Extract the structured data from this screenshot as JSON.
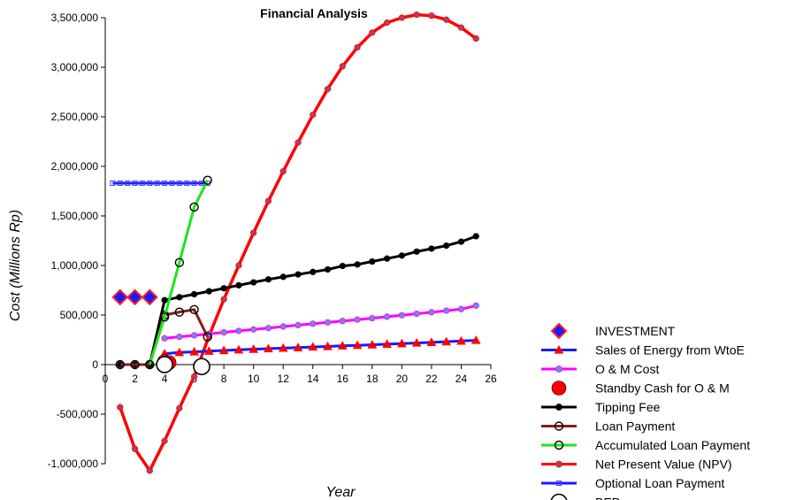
{
  "chart_data": {
    "type": "line",
    "title": "Financial Analysis",
    "xlabel": "Year",
    "ylabel": "Cost (Millions Rp)",
    "xlim": [
      0,
      26
    ],
    "ylim": [
      -1000000,
      3500000
    ],
    "x_ticks": [
      0,
      2,
      4,
      6,
      8,
      10,
      12,
      14,
      16,
      18,
      20,
      22,
      24,
      26
    ],
    "y_ticks": [
      -1000000,
      -500000,
      0,
      500000,
      1000000,
      1500000,
      2000000,
      2500000,
      3000000,
      3500000
    ],
    "x_tick_labels": [
      "0",
      "2",
      "4",
      "6",
      "8",
      "10",
      "12",
      "14",
      "16",
      "18",
      "20",
      "22",
      "24",
      "26"
    ],
    "y_tick_labels": [
      "-1,000,000",
      "-500,000",
      "0",
      "500,000",
      "1,000,000",
      "1,500,000",
      "2,000,000",
      "2,500,000",
      "3,000,000",
      "3,500,000"
    ],
    "grid": false,
    "legend_position": "bottom-right",
    "series": [
      {
        "name": "INVESTMENT",
        "color": "#1a1aff",
        "edge": "#ff2020",
        "marker": "diamond",
        "line": false,
        "points": [
          [
            1,
            680000
          ],
          [
            2,
            680000
          ],
          [
            3,
            680000
          ]
        ]
      },
      {
        "name": "Sales of Energy from WtoE",
        "color": "#1a1aff",
        "marker": "triangle",
        "marker_color": "#ff0000",
        "line": true,
        "points": [
          [
            4,
            110000
          ],
          [
            5,
            122000
          ],
          [
            6,
            129000
          ],
          [
            7,
            136000
          ],
          [
            8,
            143000
          ],
          [
            9,
            149000
          ],
          [
            10,
            155000
          ],
          [
            11,
            161000
          ],
          [
            12,
            166000
          ],
          [
            13,
            172000
          ],
          [
            14,
            178000
          ],
          [
            15,
            183000
          ],
          [
            16,
            189000
          ],
          [
            17,
            195000
          ],
          [
            18,
            200000
          ],
          [
            19,
            206000
          ],
          [
            20,
            212000
          ],
          [
            21,
            218000
          ],
          [
            22,
            224000
          ],
          [
            23,
            231000
          ],
          [
            24,
            238000
          ],
          [
            25,
            245000
          ]
        ]
      },
      {
        "name": "O & M Cost",
        "color": "#ff00ff",
        "marker": "circle",
        "marker_color": "#6f8cd8",
        "line": true,
        "points": [
          [
            4,
            265000
          ],
          [
            5,
            280000
          ],
          [
            6,
            295000
          ],
          [
            7,
            310000
          ],
          [
            8,
            325000
          ],
          [
            9,
            340000
          ],
          [
            10,
            355000
          ],
          [
            11,
            369000
          ],
          [
            12,
            384000
          ],
          [
            13,
            398000
          ],
          [
            14,
            412000
          ],
          [
            15,
            426000
          ],
          [
            16,
            440000
          ],
          [
            17,
            454000
          ],
          [
            18,
            468000
          ],
          [
            19,
            483000
          ],
          [
            20,
            498000
          ],
          [
            21,
            513000
          ],
          [
            22,
            528000
          ],
          [
            23,
            544000
          ],
          [
            24,
            560000
          ],
          [
            25,
            595000
          ]
        ]
      },
      {
        "name": "Standby Cash for O & M",
        "color": "#ff0000",
        "marker": "big-circle",
        "line": false,
        "points": [
          [
            4,
            30000
          ],
          [
            4.3,
            20000
          ]
        ]
      },
      {
        "name": "Tipping Fee",
        "color": "#000000",
        "marker": "circle",
        "marker_color": "#000000",
        "line": true,
        "points": [
          [
            1,
            0
          ],
          [
            2,
            0
          ],
          [
            3,
            0
          ],
          [
            4,
            650000
          ],
          [
            5,
            680000
          ],
          [
            6,
            710000
          ],
          [
            7,
            740000
          ],
          [
            8,
            770000
          ],
          [
            9,
            800000
          ],
          [
            10,
            830000
          ],
          [
            11,
            860000
          ],
          [
            12,
            885000
          ],
          [
            13,
            910000
          ],
          [
            14,
            935000
          ],
          [
            15,
            960000
          ],
          [
            16,
            995000
          ],
          [
            17,
            1010000
          ],
          [
            18,
            1040000
          ],
          [
            19,
            1070000
          ],
          [
            20,
            1100000
          ],
          [
            21,
            1140000
          ],
          [
            22,
            1170000
          ],
          [
            23,
            1200000
          ],
          [
            24,
            1240000
          ],
          [
            25,
            1295000
          ]
        ]
      },
      {
        "name": "Loan Payment",
        "color": "#8b1a1a",
        "marker": "open-circle",
        "line": true,
        "points": [
          [
            1,
            0
          ],
          [
            2,
            0
          ],
          [
            3,
            0
          ],
          [
            4,
            500000
          ],
          [
            5,
            530000
          ],
          [
            6,
            555000
          ],
          [
            6.9,
            280000
          ]
        ]
      },
      {
        "name": "Accumulated Loan Payment",
        "color": "#1ee51e",
        "marker": "open-circle",
        "line": true,
        "points": [
          [
            3,
            0
          ],
          [
            4,
            480000
          ],
          [
            5,
            1030000
          ],
          [
            6,
            1590000
          ],
          [
            6.9,
            1860000
          ]
        ]
      },
      {
        "name": "Net Present Value (NPV)",
        "color": "#ff0000",
        "marker": "circle",
        "marker_color": "#b04060",
        "line": true,
        "points": [
          [
            1,
            -430000
          ],
          [
            2,
            -850000
          ],
          [
            3,
            -1070000
          ],
          [
            4,
            -770000
          ],
          [
            5,
            -440000
          ],
          [
            6,
            -120000
          ],
          [
            7,
            290000
          ],
          [
            8,
            660000
          ],
          [
            9,
            1000000
          ],
          [
            10,
            1330000
          ],
          [
            11,
            1650000
          ],
          [
            12,
            1950000
          ],
          [
            13,
            2240000
          ],
          [
            14,
            2520000
          ],
          [
            15,
            2780000
          ],
          [
            16,
            3010000
          ],
          [
            17,
            3200000
          ],
          [
            18,
            3350000
          ],
          [
            19,
            3450000
          ],
          [
            20,
            3500000
          ],
          [
            21,
            3530000
          ],
          [
            22,
            3520000
          ],
          [
            23,
            3480000
          ],
          [
            24,
            3400000
          ],
          [
            25,
            3290000
          ]
        ]
      },
      {
        "name": "Optional Loan Payment",
        "color": "#1a1aff",
        "marker": "square",
        "line": true,
        "points": [
          [
            0.5,
            1830000
          ],
          [
            1,
            1830000
          ],
          [
            1.5,
            1830000
          ],
          [
            2,
            1830000
          ],
          [
            2.5,
            1830000
          ],
          [
            3,
            1830000
          ],
          [
            3.5,
            1830000
          ],
          [
            4,
            1830000
          ],
          [
            4.5,
            1830000
          ],
          [
            5,
            1830000
          ],
          [
            5.5,
            1830000
          ],
          [
            6,
            1830000
          ],
          [
            6.5,
            1830000
          ],
          [
            6.9,
            1830000
          ]
        ]
      },
      {
        "name": "BEP",
        "color": "#000000",
        "marker": "big-open-circle",
        "line": false,
        "points": [
          [
            4,
            0
          ],
          [
            6.5,
            -20000
          ]
        ]
      }
    ]
  }
}
